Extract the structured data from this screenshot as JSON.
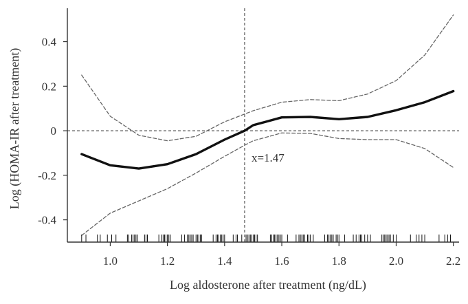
{
  "chart_data": {
    "type": "line",
    "xlabel": "Log aldosterone after treatment (ng/dL)",
    "ylabel": "Log (HOMA-IR after treatment)",
    "xlim": [
      0.85,
      2.22
    ],
    "ylim": [
      -0.5,
      0.55
    ],
    "x_ticks": [
      1.0,
      1.2,
      1.4,
      1.6,
      1.8,
      2.0,
      2.2
    ],
    "x_tick_labels": [
      "1.0",
      "1.2",
      "1.4",
      "1.6",
      "1.8",
      "2.0",
      "2.2"
    ],
    "y_ticks": [
      0.4,
      0.2,
      0,
      -0.2,
      -0.4
    ],
    "y_tick_labels": [
      "0.4",
      "0.2",
      "0",
      "-0.2",
      "-0.4"
    ],
    "grid": false,
    "reference_lines": {
      "horizontal_y": 0,
      "vertical_x": 1.47
    },
    "annotation": {
      "text": "x=1.47",
      "x": 1.47,
      "y": -0.12
    },
    "series": [
      {
        "role": "estimate",
        "style": "solid",
        "x": [
          0.9,
          1.0,
          1.1,
          1.2,
          1.3,
          1.4,
          1.47,
          1.5,
          1.6,
          1.7,
          1.8,
          1.9,
          2.0,
          2.1,
          2.2
        ],
        "y": [
          -0.105,
          -0.155,
          -0.17,
          -0.15,
          -0.105,
          -0.04,
          0.0,
          0.025,
          0.06,
          0.062,
          0.052,
          0.062,
          0.092,
          0.128,
          0.178
        ]
      },
      {
        "role": "upper-ci",
        "style": "dashed",
        "x": [
          0.9,
          1.0,
          1.1,
          1.2,
          1.3,
          1.4,
          1.47,
          1.5,
          1.6,
          1.7,
          1.8,
          1.9,
          2.0,
          2.1,
          2.2
        ],
        "y": [
          0.25,
          0.065,
          -0.02,
          -0.045,
          -0.025,
          0.04,
          0.075,
          0.09,
          0.128,
          0.14,
          0.135,
          0.165,
          0.225,
          0.34,
          0.52
        ]
      },
      {
        "role": "lower-ci",
        "style": "dashed",
        "x": [
          0.9,
          1.0,
          1.1,
          1.2,
          1.3,
          1.4,
          1.47,
          1.5,
          1.6,
          1.7,
          1.8,
          1.9,
          2.0,
          2.1,
          2.2
        ],
        "y": [
          -0.47,
          -0.37,
          -0.315,
          -0.26,
          -0.19,
          -0.115,
          -0.065,
          -0.045,
          -0.01,
          -0.012,
          -0.035,
          -0.04,
          -0.04,
          -0.08,
          -0.165
        ]
      }
    ],
    "rug_x": [
      0.9,
      0.915,
      0.955,
      0.965,
      0.99,
      1.005,
      1.02,
      1.06,
      1.065,
      1.075,
      1.08,
      1.085,
      1.09,
      1.095,
      1.12,
      1.125,
      1.13,
      1.17,
      1.18,
      1.185,
      1.19,
      1.195,
      1.2,
      1.205,
      1.21,
      1.25,
      1.26,
      1.27,
      1.275,
      1.28,
      1.285,
      1.29,
      1.3,
      1.305,
      1.31,
      1.315,
      1.32,
      1.36,
      1.37,
      1.375,
      1.38,
      1.385,
      1.39,
      1.395,
      1.4,
      1.43,
      1.44,
      1.445,
      1.46,
      1.475,
      1.48,
      1.485,
      1.49,
      1.495,
      1.5,
      1.505,
      1.51,
      1.515,
      1.56,
      1.565,
      1.57,
      1.575,
      1.58,
      1.585,
      1.59,
      1.595,
      1.6,
      1.62,
      1.65,
      1.66,
      1.665,
      1.67,
      1.675,
      1.68,
      1.69,
      1.695,
      1.7,
      1.71,
      1.75,
      1.76,
      1.765,
      1.77,
      1.775,
      1.78,
      1.79,
      1.795,
      1.8,
      1.82,
      1.85,
      1.86,
      1.87,
      1.875,
      1.88,
      1.89,
      1.9,
      1.91,
      1.95,
      1.955,
      1.96,
      1.965,
      1.97,
      1.975,
      1.98,
      1.99,
      2.0,
      2.05,
      2.07,
      2.08,
      2.09,
      2.1,
      2.15,
      2.17,
      2.18,
      2.19
    ]
  }
}
